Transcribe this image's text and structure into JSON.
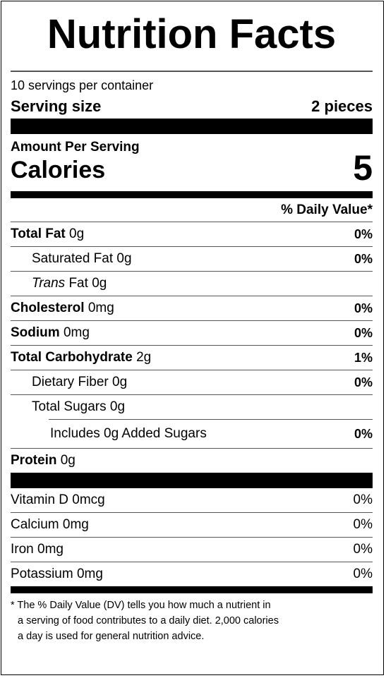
{
  "title": "Nutrition Facts",
  "servings_per_container": "10 servings per container",
  "serving_size": {
    "label": "Serving size",
    "value": "2 pieces"
  },
  "amount_per_serving": "Amount Per Serving",
  "calories": {
    "label": "Calories",
    "value": "5"
  },
  "dv_header": "% Daily Value*",
  "nutrients": {
    "total_fat": {
      "name": "Total Fat",
      "amount": "0g",
      "dv": "0%"
    },
    "saturated_fat": {
      "name": "Saturated Fat",
      "amount": "0g",
      "dv": "0%"
    },
    "trans_fat": {
      "name_italic": "Trans",
      "name_rest": "Fat",
      "amount": "0g"
    },
    "cholesterol": {
      "name": "Cholesterol",
      "amount": "0mg",
      "dv": "0%"
    },
    "sodium": {
      "name": "Sodium",
      "amount": "0mg",
      "dv": "0%"
    },
    "total_carbohydrate": {
      "name": "Total Carbohydrate",
      "amount": "2g",
      "dv": "1%"
    },
    "dietary_fiber": {
      "name": "Dietary Fiber",
      "amount": "0g",
      "dv": "0%"
    },
    "total_sugars": {
      "name": "Total Sugars",
      "amount": "0g"
    },
    "added_sugars": {
      "name": "Includes 0g Added Sugars",
      "dv": "0%"
    },
    "protein": {
      "name": "Protein",
      "amount": "0g"
    }
  },
  "vitamins": [
    {
      "name": "Vitamin D 0mcg",
      "dv": "0%"
    },
    {
      "name": "Calcium 0mg",
      "dv": "0%"
    },
    {
      "name": "Iron 0mg",
      "dv": "0%"
    },
    {
      "name": "Potassium 0mg",
      "dv": "0%"
    }
  ],
  "footnote": {
    "line1": "* The % Daily Value (DV) tells you how much a nutrient in",
    "line2": "a serving of food contributes to a daily diet. 2,000 calories",
    "line3": "a day is used for general nutrition advice."
  }
}
